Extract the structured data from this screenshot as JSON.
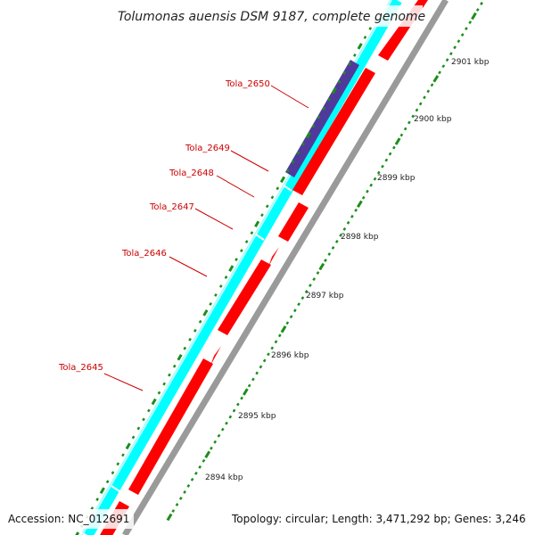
{
  "header": {
    "title": "Tolumonas auensis DSM 9187, complete genome"
  },
  "footer": {
    "accession": "Accession: NC_012691",
    "summary": "Topology: circular; Length: 3,471,292 bp; Genes: 3,246"
  },
  "colors": {
    "plus_strand": "#00ffff",
    "minus_strand": "#ff0000",
    "highlight_gene": "#4f3a9b",
    "gene_label": "#cc0000",
    "tick": "#1a8f1a",
    "shadow": "#888888"
  },
  "scale": {
    "ticks": [
      "2894 kbp",
      "2895 kbp",
      "2896 kbp",
      "2897 kbp",
      "2898 kbp",
      "2899 kbp",
      "2900 kbp",
      "2901 kbp"
    ]
  },
  "genes": {
    "labels": [
      "Tola_2645",
      "Tola_2646",
      "Tola_2647",
      "Tola_2648",
      "Tola_2649",
      "Tola_2650"
    ]
  }
}
